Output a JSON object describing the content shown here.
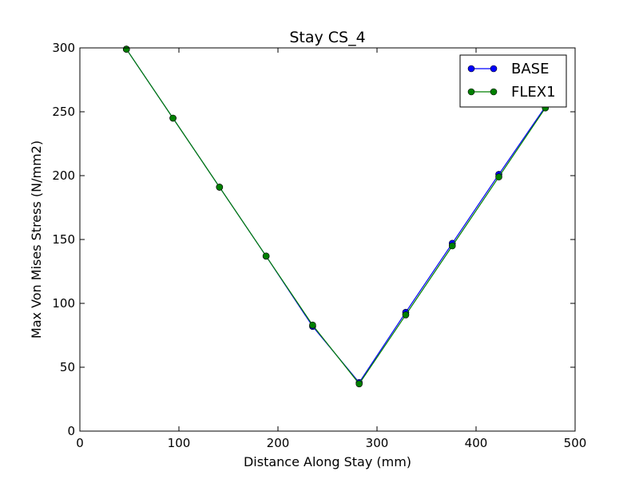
{
  "chart_data": {
    "type": "line",
    "title": "Stay CS_4",
    "xlabel": "Distance Along Stay (mm)",
    "ylabel": "Max Von Mises Stress (N/mm2)",
    "xlim": [
      0,
      500
    ],
    "ylim": [
      0,
      300
    ],
    "xticks": [
      0,
      100,
      200,
      300,
      400,
      500
    ],
    "yticks": [
      0,
      50,
      100,
      150,
      200,
      250,
      300
    ],
    "grid": false,
    "legend_position": "top-right",
    "series": [
      {
        "name": "BASE",
        "color": "#0000ff",
        "marker": "circle",
        "x": [
          47,
          94,
          141,
          188,
          235,
          282,
          329,
          376,
          423,
          470
        ],
        "y": [
          299,
          245,
          191,
          137,
          82,
          38,
          93,
          147,
          201,
          254
        ]
      },
      {
        "name": "FLEX1",
        "color": "#008000",
        "marker": "circle",
        "x": [
          47,
          94,
          141,
          188,
          235,
          282,
          329,
          376,
          423,
          470
        ],
        "y": [
          299,
          245,
          191,
          137,
          83,
          37,
          91,
          145,
          199,
          253
        ]
      }
    ]
  }
}
